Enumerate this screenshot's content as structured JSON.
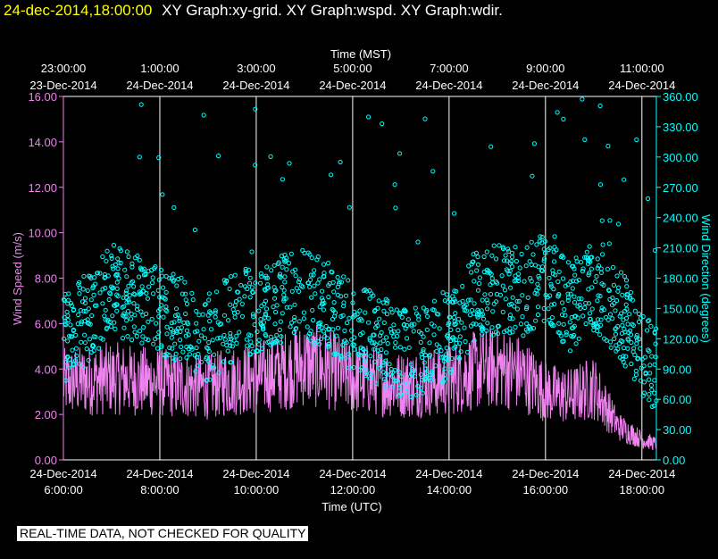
{
  "header": {
    "timestamp": "24-dec-2014,18:00:00",
    "graphs": "XY Graph:xy-grid.  XY Graph:wspd.  XY Graph:wdir."
  },
  "banner": "REAL-TIME DATA, NOT CHECKED FOR QUALITY",
  "colors": {
    "speed": "#ee82ee",
    "direction": "#00ffff",
    "grid": "#ffffff",
    "background": "#000000"
  },
  "chart_data": {
    "type": "scatter",
    "title": "",
    "top_axis": {
      "title": "Time (MST)",
      "ticks": [
        {
          "time": "23:00:00",
          "date": "23-Dec-2014"
        },
        {
          "time": "1:00:00",
          "date": "24-Dec-2014"
        },
        {
          "time": "3:00:00",
          "date": "24-Dec-2014"
        },
        {
          "time": "5:00:00",
          "date": "24-Dec-2014"
        },
        {
          "time": "7:00:00",
          "date": "24-Dec-2014"
        },
        {
          "time": "9:00:00",
          "date": "24-Dec-2014"
        },
        {
          "time": "11:00:00",
          "date": "24-Dec-2014"
        }
      ]
    },
    "bottom_axis": {
      "title": "Time (UTC)",
      "ticks": [
        {
          "date": "24-Dec-2014",
          "time": "6:00:00"
        },
        {
          "date": "24-Dec-2014",
          "time": "8:00:00"
        },
        {
          "date": "24-Dec-2014",
          "time": "10:00:00"
        },
        {
          "date": "24-Dec-2014",
          "time": "12:00:00"
        },
        {
          "date": "24-Dec-2014",
          "time": "14:00:00"
        },
        {
          "date": "24-Dec-2014",
          "time": "16:00:00"
        },
        {
          "date": "24-Dec-2014",
          "time": "18:00:00"
        }
      ]
    },
    "xlim_utc_hours": [
      6,
      18.3
    ],
    "left_axis": {
      "label": "Wind Speed (m/s)",
      "ylim": [
        0,
        16
      ],
      "ticks": [
        "0.00",
        "2.00",
        "4.00",
        "6.00",
        "8.00",
        "10.00",
        "12.00",
        "14.00",
        "16.00"
      ]
    },
    "right_axis": {
      "label": "Wind Direction (degrees)",
      "ylim": [
        0,
        360
      ],
      "ticks": [
        "0.00",
        "30.00",
        "60.00",
        "90.00",
        "120.00",
        "150.00",
        "180.00",
        "210.00",
        "240.00",
        "270.00",
        "300.00",
        "330.00",
        "360.00"
      ]
    },
    "series": [
      {
        "name": "Wind Speed (m/s)",
        "kind": "line",
        "x_utc_hours": [
          6.0,
          6.5,
          7.0,
          7.5,
          8.0,
          8.5,
          9.0,
          9.5,
          10.0,
          10.5,
          11.0,
          11.5,
          12.0,
          12.5,
          13.0,
          13.5,
          14.0,
          14.5,
          15.0,
          15.5,
          16.0,
          16.5,
          17.0,
          17.5,
          18.0,
          18.3
        ],
        "values": [
          3.4,
          3.5,
          3.6,
          3.5,
          3.4,
          3.3,
          3.2,
          3.5,
          3.6,
          3.9,
          4.2,
          4.0,
          3.6,
          3.5,
          3.3,
          3.4,
          3.5,
          3.9,
          4.1,
          3.8,
          3.0,
          2.8,
          3.2,
          1.5,
          0.9,
          0.7
        ]
      },
      {
        "name": "Wind Direction (degrees)",
        "kind": "scatter",
        "x_utc_hours": [
          6.0,
          6.5,
          7.0,
          7.5,
          8.0,
          8.5,
          9.0,
          9.5,
          10.0,
          10.5,
          11.0,
          11.5,
          12.0,
          12.5,
          13.0,
          13.5,
          14.0,
          14.5,
          15.0,
          15.5,
          16.0,
          16.5,
          17.0,
          17.5,
          18.0,
          18.3
        ],
        "values": [
          120,
          140,
          170,
          160,
          145,
          135,
          120,
          140,
          150,
          160,
          165,
          150,
          130,
          120,
          105,
          110,
          125,
          160,
          170,
          165,
          180,
          150,
          170,
          150,
          110,
          90
        ]
      }
    ],
    "grid": true
  }
}
